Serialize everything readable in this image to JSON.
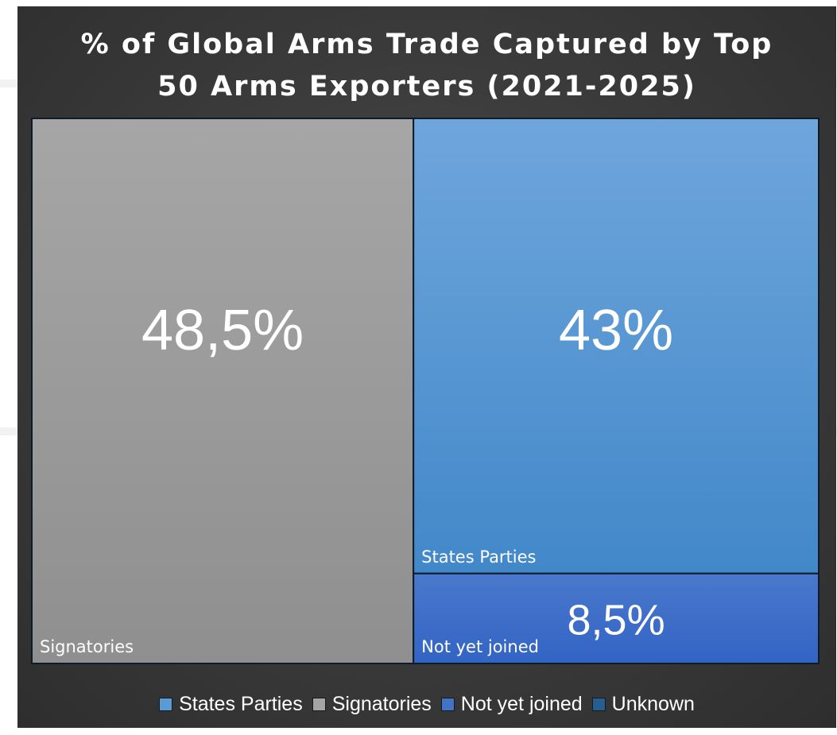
{
  "chart_data": {
    "type": "treemap",
    "title_lines": [
      "% of Global Arms Trade Captured by Top",
      "50 Arms Exporters (2021-2025)"
    ],
    "items": [
      {
        "name": "Signatories",
        "value": 48.5,
        "value_label": "48,5%",
        "color": "#a6a6a6",
        "color_end": "#8f8f8f"
      },
      {
        "name": "States Parties",
        "value": 43,
        "value_label": "43%",
        "color": "#6fa6dc",
        "color_end": "#4288c9"
      },
      {
        "name": "Not yet joined",
        "value": 8.5,
        "value_label": "8,5%",
        "color": "#4a78cc",
        "color_end": "#3264c4"
      }
    ],
    "legend": [
      {
        "label": "States Parties",
        "color": "#5b9bd5"
      },
      {
        "label": "Signatories",
        "color": "#a5a5a5"
      },
      {
        "label": "Not yet joined",
        "color": "#4472c4"
      },
      {
        "label": "Unknown",
        "color": "#255e91"
      }
    ],
    "border_color": "#0d1b2a",
    "background": "#3a3a3a"
  }
}
